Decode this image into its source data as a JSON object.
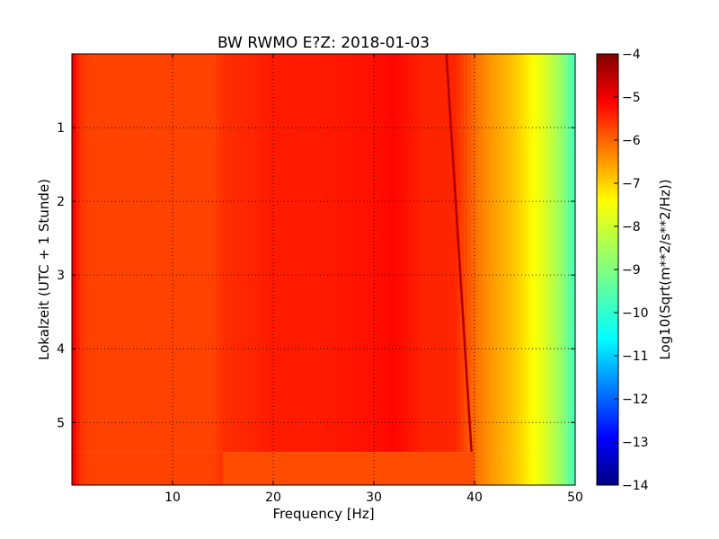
{
  "chart_data": {
    "type": "heatmap",
    "title": "BW RWMO E?Z: 2018-01-03",
    "xlabel": "Frequency [Hz]",
    "ylabel": "Lokalzeit (UTC + 1 Stunde)",
    "xlim": [
      0,
      50
    ],
    "ylim": [
      0,
      5.85
    ],
    "y_inverted": true,
    "x_ticks": [
      10,
      20,
      30,
      40,
      50
    ],
    "x_tick_labels": [
      "10",
      "20",
      "30",
      "40",
      "50"
    ],
    "y_ticks": [
      1,
      2,
      3,
      4,
      5
    ],
    "y_tick_labels": [
      "1",
      "2",
      "3",
      "4",
      "5"
    ],
    "grid": true,
    "colormap": "jet",
    "colorbar": {
      "label": "Log10(Sqrt(m**2/s**2/Hz))",
      "range": [
        -14,
        -4
      ],
      "ticks": [
        -4,
        -5,
        -6,
        -7,
        -8,
        -9,
        -10,
        -11,
        -12,
        -13,
        -14
      ],
      "tick_labels": [
        "−4",
        "−5",
        "−6",
        "−7",
        "−8",
        "−9",
        "−10",
        "−11",
        "−12",
        "−13",
        "−14"
      ]
    },
    "spectral_profile": {
      "frequency_hz": [
        0,
        0.5,
        1,
        2,
        5,
        10,
        14,
        15,
        18,
        20,
        25,
        30,
        32,
        35,
        38,
        40,
        41,
        42,
        43,
        44,
        45,
        46,
        47,
        48,
        49,
        50
      ],
      "level": [
        -5.1,
        -5.5,
        -5.8,
        -5.9,
        -5.9,
        -5.9,
        -5.9,
        -5.7,
        -5.6,
        -5.5,
        -5.5,
        -5.4,
        -5.3,
        -5.6,
        -5.6,
        -6.3,
        -6.6,
        -6.8,
        -7.0,
        -7.2,
        -7.5,
        -7.8,
        -8.1,
        -8.5,
        -9.0,
        -9.6
      ]
    },
    "narrowband_line": {
      "freq_start_hz": 37.2,
      "freq_end_hz": 39.7,
      "time_end": 5.4,
      "level": -4.5
    },
    "data_end_time_high_band": 5.4
  }
}
